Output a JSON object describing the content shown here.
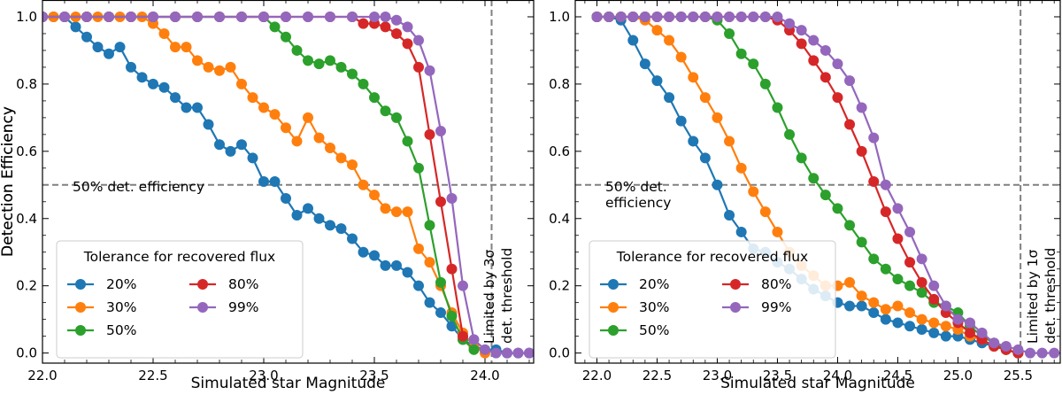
{
  "figure": {
    "ylabel": "Detection Efficiency",
    "xlabel": "Simulated star Magnitude"
  },
  "chart_data": [
    {
      "type": "line",
      "title": "",
      "xlabel": "Simulated star Magnitude",
      "ylabel": "Detection Efficiency",
      "xlim": [
        22.0,
        24.22
      ],
      "ylim": [
        -0.03,
        1.05
      ],
      "xticks": [
        "22.0",
        "22.5",
        "23.0",
        "23.5",
        "24.0"
      ],
      "yticks": [
        "0.0",
        "0.2",
        "0.4",
        "0.6",
        "0.8",
        "1.0"
      ],
      "hline": {
        "y": 0.5,
        "label": "50% det. efficiency"
      },
      "vline": {
        "x": 24.03,
        "label_lines": [
          "Limited by 3σ",
          "det. threshold"
        ]
      },
      "legend": {
        "title": "Tolerance for recovered flux",
        "position": "lower-left"
      },
      "series": [
        {
          "name": "20%",
          "color": "#1f77b4",
          "x": [
            22.0,
            22.05,
            22.1,
            22.15,
            22.2,
            22.25,
            22.3,
            22.35,
            22.4,
            22.45,
            22.5,
            22.55,
            22.6,
            22.65,
            22.7,
            22.75,
            22.8,
            22.85,
            22.9,
            22.95,
            23.0,
            23.05,
            23.1,
            23.15,
            23.2,
            23.25,
            23.3,
            23.35,
            23.4,
            23.45,
            23.5,
            23.55,
            23.6,
            23.65,
            23.7,
            23.75,
            23.8,
            23.85,
            23.9,
            23.95,
            24.0,
            24.05,
            24.1,
            24.15,
            24.2
          ],
          "y": [
            1.0,
            1.0,
            1.0,
            0.97,
            0.94,
            0.91,
            0.89,
            0.91,
            0.85,
            0.82,
            0.8,
            0.79,
            0.76,
            0.73,
            0.73,
            0.68,
            0.62,
            0.6,
            0.62,
            0.58,
            0.51,
            0.51,
            0.46,
            0.41,
            0.43,
            0.4,
            0.38,
            0.37,
            0.34,
            0.3,
            0.29,
            0.26,
            0.26,
            0.24,
            0.2,
            0.15,
            0.12,
            0.08,
            0.04,
            0.02,
            0.01,
            0.01,
            0.0,
            0.0,
            0.0
          ]
        },
        {
          "name": "30%",
          "color": "#ff7f0e",
          "x": [
            22.0,
            22.05,
            22.1,
            22.15,
            22.2,
            22.25,
            22.3,
            22.35,
            22.4,
            22.45,
            22.5,
            22.55,
            22.6,
            22.65,
            22.7,
            22.75,
            22.8,
            22.85,
            22.9,
            22.95,
            23.0,
            23.05,
            23.1,
            23.15,
            23.2,
            23.25,
            23.3,
            23.35,
            23.4,
            23.45,
            23.5,
            23.55,
            23.6,
            23.65,
            23.7,
            23.75,
            23.8,
            23.85,
            23.9,
            23.95,
            24.0
          ],
          "y": [
            1.0,
            1.0,
            1.0,
            1.0,
            1.0,
            1.0,
            1.0,
            1.0,
            1.0,
            1.0,
            0.98,
            0.95,
            0.91,
            0.91,
            0.87,
            0.85,
            0.84,
            0.85,
            0.8,
            0.76,
            0.73,
            0.71,
            0.67,
            0.63,
            0.7,
            0.64,
            0.61,
            0.58,
            0.56,
            0.5,
            0.47,
            0.43,
            0.42,
            0.42,
            0.31,
            0.27,
            0.2,
            0.12,
            0.06,
            0.02,
            0.0
          ]
        },
        {
          "name": "50%",
          "color": "#2ca02c",
          "x": [
            22.0,
            22.1,
            22.2,
            22.3,
            22.4,
            22.5,
            22.6,
            22.7,
            22.8,
            22.9,
            23.0,
            23.05,
            23.1,
            23.15,
            23.2,
            23.25,
            23.3,
            23.35,
            23.4,
            23.45,
            23.5,
            23.55,
            23.6,
            23.65,
            23.7,
            23.75,
            23.8,
            23.85,
            23.9,
            23.95
          ],
          "y": [
            1.0,
            1.0,
            1.0,
            1.0,
            1.0,
            1.0,
            1.0,
            1.0,
            1.0,
            1.0,
            1.0,
            0.97,
            0.94,
            0.9,
            0.87,
            0.86,
            0.87,
            0.85,
            0.83,
            0.8,
            0.76,
            0.72,
            0.7,
            0.63,
            0.55,
            0.38,
            0.21,
            0.11,
            0.04,
            0.01
          ]
        },
        {
          "name": "80%",
          "color": "#d62728",
          "x": [
            22.0,
            22.1,
            22.2,
            22.3,
            22.4,
            22.5,
            22.6,
            22.7,
            22.8,
            22.9,
            23.0,
            23.1,
            23.2,
            23.3,
            23.4,
            23.45,
            23.5,
            23.55,
            23.6,
            23.65,
            23.7,
            23.75,
            23.8,
            23.85,
            23.9
          ],
          "y": [
            1.0,
            1.0,
            1.0,
            1.0,
            1.0,
            1.0,
            1.0,
            1.0,
            1.0,
            1.0,
            1.0,
            1.0,
            1.0,
            1.0,
            1.0,
            0.98,
            0.98,
            0.97,
            0.95,
            0.92,
            0.85,
            0.65,
            0.45,
            0.25,
            0.05
          ]
        },
        {
          "name": "99%",
          "color": "#9467bd",
          "x": [
            22.0,
            22.1,
            22.2,
            22.3,
            22.4,
            22.5,
            22.6,
            22.7,
            22.8,
            22.9,
            23.0,
            23.1,
            23.2,
            23.3,
            23.4,
            23.5,
            23.55,
            23.6,
            23.65,
            23.7,
            23.75,
            23.8,
            23.85,
            23.9,
            23.95,
            24.0,
            24.05,
            24.1,
            24.15,
            24.2
          ],
          "y": [
            1.0,
            1.0,
            1.0,
            1.0,
            1.0,
            1.0,
            1.0,
            1.0,
            1.0,
            1.0,
            1.0,
            1.0,
            1.0,
            1.0,
            1.0,
            1.0,
            1.0,
            0.99,
            0.97,
            0.93,
            0.84,
            0.66,
            0.46,
            0.2,
            0.04,
            0.01,
            0.0,
            0.0,
            0.0,
            0.0
          ]
        }
      ]
    },
    {
      "type": "line",
      "title": "",
      "xlabel": "Simulated star Magnitude",
      "ylabel": "Detection Efficiency",
      "xlim": [
        21.82,
        25.85
      ],
      "ylim": [
        -0.03,
        1.05
      ],
      "xticks": [
        "22.0",
        "22.5",
        "23.0",
        "23.5",
        "24.0",
        "24.5",
        "25.0",
        "25.5"
      ],
      "yticks": [
        "0.0",
        "0.2",
        "0.4",
        "0.6",
        "0.8",
        "1.0"
      ],
      "hline": {
        "y": 0.5,
        "label_lines": [
          "50% det.",
          "efficiency"
        ]
      },
      "vline": {
        "x": 25.52,
        "label_lines": [
          "Limited by 1σ",
          "det. threshold"
        ]
      },
      "legend": {
        "title": "Tolerance for recovered flux",
        "position": "lower-left"
      },
      "series": [
        {
          "name": "20%",
          "color": "#1f77b4",
          "x": [
            22.0,
            22.1,
            22.2,
            22.3,
            22.4,
            22.5,
            22.6,
            22.7,
            22.8,
            22.9,
            23.0,
            23.1,
            23.2,
            23.3,
            23.4,
            23.5,
            23.6,
            23.7,
            23.8,
            23.9,
            24.0,
            24.1,
            24.2,
            24.3,
            24.4,
            24.5,
            24.6,
            24.7,
            24.8,
            24.9,
            25.0,
            25.1,
            25.2,
            25.3,
            25.4,
            25.5
          ],
          "y": [
            1.0,
            1.0,
            0.99,
            0.93,
            0.86,
            0.81,
            0.76,
            0.69,
            0.63,
            0.58,
            0.5,
            0.41,
            0.36,
            0.31,
            0.3,
            0.27,
            0.25,
            0.22,
            0.19,
            0.17,
            0.15,
            0.14,
            0.14,
            0.12,
            0.1,
            0.09,
            0.08,
            0.07,
            0.06,
            0.05,
            0.05,
            0.04,
            0.03,
            0.02,
            0.01,
            0.0
          ]
        },
        {
          "name": "30%",
          "color": "#ff7f0e",
          "x": [
            22.0,
            22.1,
            22.2,
            22.3,
            22.4,
            22.5,
            22.6,
            22.7,
            22.8,
            22.9,
            23.0,
            23.1,
            23.2,
            23.3,
            23.4,
            23.5,
            23.6,
            23.7,
            23.8,
            23.9,
            24.0,
            24.1,
            24.2,
            24.3,
            24.4,
            24.5,
            24.6,
            24.7,
            24.8,
            24.9,
            25.0,
            25.1,
            25.2,
            25.3,
            25.4,
            25.5
          ],
          "y": [
            1.0,
            1.0,
            1.0,
            1.0,
            0.99,
            0.96,
            0.93,
            0.88,
            0.82,
            0.76,
            0.7,
            0.63,
            0.55,
            0.48,
            0.42,
            0.36,
            0.3,
            0.26,
            0.23,
            0.2,
            0.2,
            0.21,
            0.17,
            0.15,
            0.13,
            0.14,
            0.12,
            0.1,
            0.09,
            0.08,
            0.07,
            0.05,
            0.04,
            0.02,
            0.01,
            0.0
          ]
        },
        {
          "name": "50%",
          "color": "#2ca02c",
          "x": [
            22.0,
            22.1,
            22.2,
            22.3,
            22.4,
            22.5,
            22.6,
            22.7,
            22.8,
            22.9,
            23.0,
            23.1,
            23.2,
            23.3,
            23.4,
            23.5,
            23.6,
            23.7,
            23.8,
            23.9,
            24.0,
            24.1,
            24.2,
            24.3,
            24.4,
            24.5,
            24.6,
            24.7,
            24.8,
            24.9,
            25.0,
            25.1,
            25.2,
            25.3,
            25.4,
            25.5
          ],
          "y": [
            1.0,
            1.0,
            1.0,
            1.0,
            1.0,
            1.0,
            1.0,
            1.0,
            1.0,
            1.0,
            0.99,
            0.95,
            0.89,
            0.86,
            0.8,
            0.73,
            0.65,
            0.58,
            0.52,
            0.47,
            0.43,
            0.38,
            0.33,
            0.28,
            0.25,
            0.22,
            0.2,
            0.18,
            0.15,
            0.14,
            0.12,
            0.08,
            0.05,
            0.03,
            0.01,
            0.0
          ]
        },
        {
          "name": "80%",
          "color": "#d62728",
          "x": [
            22.0,
            22.1,
            22.2,
            22.3,
            22.4,
            22.5,
            22.6,
            22.7,
            22.8,
            22.9,
            23.0,
            23.1,
            23.2,
            23.3,
            23.4,
            23.5,
            23.6,
            23.7,
            23.8,
            23.9,
            24.0,
            24.1,
            24.2,
            24.3,
            24.4,
            24.5,
            24.6,
            24.7,
            24.8,
            24.9,
            25.0,
            25.1,
            25.2,
            25.3,
            25.4,
            25.5
          ],
          "y": [
            1.0,
            1.0,
            1.0,
            1.0,
            1.0,
            1.0,
            1.0,
            1.0,
            1.0,
            1.0,
            1.0,
            1.0,
            1.0,
            1.0,
            1.0,
            0.99,
            0.96,
            0.92,
            0.87,
            0.82,
            0.76,
            0.68,
            0.6,
            0.51,
            0.42,
            0.34,
            0.27,
            0.21,
            0.16,
            0.12,
            0.09,
            0.06,
            0.04,
            0.02,
            0.01,
            0.0
          ]
        },
        {
          "name": "99%",
          "color": "#9467bd",
          "x": [
            22.0,
            22.1,
            22.2,
            22.3,
            22.4,
            22.5,
            22.6,
            22.7,
            22.8,
            22.9,
            23.0,
            23.1,
            23.2,
            23.3,
            23.4,
            23.5,
            23.6,
            23.7,
            23.8,
            23.9,
            24.0,
            24.1,
            24.2,
            24.3,
            24.4,
            24.5,
            24.6,
            24.7,
            24.8,
            24.9,
            25.0,
            25.1,
            25.2,
            25.3,
            25.4,
            25.5,
            25.6,
            25.7,
            25.8
          ],
          "y": [
            1.0,
            1.0,
            1.0,
            1.0,
            1.0,
            1.0,
            1.0,
            1.0,
            1.0,
            1.0,
            1.0,
            1.0,
            1.0,
            1.0,
            1.0,
            1.0,
            0.98,
            0.96,
            0.93,
            0.9,
            0.86,
            0.81,
            0.73,
            0.64,
            0.5,
            0.43,
            0.36,
            0.28,
            0.2,
            0.14,
            0.1,
            0.09,
            0.06,
            0.03,
            0.02,
            0.01,
            0.0,
            0.0,
            0.0
          ]
        }
      ]
    }
  ]
}
